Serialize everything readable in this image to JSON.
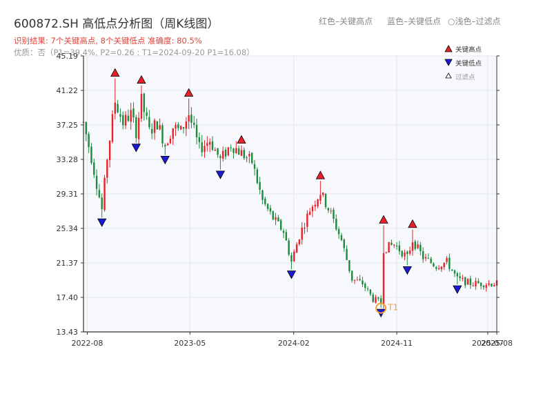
{
  "title": "600872.SH 高低点分析图（周K线图）",
  "subtitle_result": "识别结果: 7个关键高点, 8个关键低点   准确度: 80.5%",
  "subtitle_quality": "优质：否（P1=39.4%, P2=0.26 ; T1=2024-09-20 P1=16.08）",
  "hints": {
    "red": "红色–关键高点",
    "blue": "蓝色–关键低点",
    "light": "○浅色–过滤点"
  },
  "legend": {
    "high": "关键高点",
    "low": "关键低点",
    "filtered": "过滤点"
  },
  "colors": {
    "up": "#e8212b",
    "down": "#1a8a3c",
    "high_marker": "#e8212b",
    "low_marker": "#1b1bd6",
    "t1_marker": "#f0a030",
    "plot_bg": "#f6f8fb",
    "grid": "#e3e6ec"
  },
  "chart_data": {
    "type": "candlestick",
    "x_axis": {
      "type": "date",
      "range": [
        "2022-07-22",
        "2025-07-25"
      ],
      "ticks": [
        "2022-08",
        "2023-05",
        "2024-02",
        "2024-11",
        "2025-07",
        "2025-08"
      ]
    },
    "y_axis": {
      "range": [
        13.43,
        45.19
      ],
      "ticks": [
        "13.43",
        "17.40",
        "21.37",
        "25.34",
        "29.31",
        "33.28",
        "37.25",
        "41.22",
        "45.19"
      ]
    },
    "grid": true,
    "legend_position": "top-right",
    "key_highs": [
      {
        "date": "2022-10-14",
        "price": 42.6
      },
      {
        "date": "2022-12-23",
        "price": 41.8
      },
      {
        "date": "2023-04-28",
        "price": 40.3
      },
      {
        "date": "2023-09-15",
        "price": 34.9
      },
      {
        "date": "2024-04-12",
        "price": 30.8
      },
      {
        "date": "2024-09-27",
        "price": 25.7
      },
      {
        "date": "2024-12-13",
        "price": 25.2
      }
    ],
    "key_lows": [
      {
        "date": "2022-09-09",
        "price": 26.6
      },
      {
        "date": "2022-12-09",
        "price": 35.2
      },
      {
        "date": "2023-02-24",
        "price": 33.8
      },
      {
        "date": "2023-07-21",
        "price": 32.1
      },
      {
        "date": "2024-01-26",
        "price": 20.6
      },
      {
        "date": "2024-09-20",
        "price": 16.2
      },
      {
        "date": "2024-11-29",
        "price": 21.1
      },
      {
        "date": "2025-04-11",
        "price": 18.9
      }
    ],
    "t1": {
      "label": "T1",
      "date": "2024-09-20",
      "price": 16.08
    },
    "price_path": [
      [
        "2022-07-22",
        37.5
      ],
      [
        "2022-08-12",
        33.5
      ],
      [
        "2022-09-09",
        27.5
      ],
      [
        "2022-09-23",
        33.5
      ],
      [
        "2022-10-14",
        40.0
      ],
      [
        "2022-11-04",
        37.5
      ],
      [
        "2022-11-25",
        38.5
      ],
      [
        "2022-12-09",
        36.5
      ],
      [
        "2022-12-23",
        40.0
      ],
      [
        "2023-01-13",
        36.5
      ],
      [
        "2023-02-03",
        37.5
      ],
      [
        "2023-02-24",
        35.0
      ],
      [
        "2023-03-17",
        37.0
      ],
      [
        "2023-04-07",
        36.5
      ],
      [
        "2023-04-28",
        38.5
      ],
      [
        "2023-05-26",
        34.5
      ],
      [
        "2023-06-23",
        35.5
      ],
      [
        "2023-07-21",
        33.2
      ],
      [
        "2023-08-18",
        35.0
      ],
      [
        "2023-09-15",
        34.0
      ],
      [
        "2023-10-13",
        33.0
      ],
      [
        "2023-11-10",
        28.5
      ],
      [
        "2023-12-08",
        26.5
      ],
      [
        "2024-01-05",
        25.0
      ],
      [
        "2024-01-26",
        21.5
      ],
      [
        "2024-02-16",
        24.5
      ],
      [
        "2024-03-15",
        27.5
      ],
      [
        "2024-04-12",
        29.5
      ],
      [
        "2024-05-10",
        27.0
      ],
      [
        "2024-06-07",
        24.0
      ],
      [
        "2024-07-05",
        19.5
      ],
      [
        "2024-08-02",
        19.0
      ],
      [
        "2024-08-30",
        17.2
      ],
      [
        "2024-09-20",
        16.8
      ],
      [
        "2024-09-27",
        23.0
      ],
      [
        "2024-10-25",
        23.5
      ],
      [
        "2024-11-29",
        22.0
      ],
      [
        "2024-12-13",
        24.0
      ],
      [
        "2025-01-10",
        22.0
      ],
      [
        "2025-02-14",
        21.0
      ],
      [
        "2025-03-14",
        21.5
      ],
      [
        "2025-04-11",
        19.5
      ],
      [
        "2025-05-16",
        19.0
      ],
      [
        "2025-06-13",
        19.0
      ],
      [
        "2025-07-25",
        19.0
      ]
    ],
    "weekly_candles_note": "weekly OHLC reconstructed along price_path"
  }
}
